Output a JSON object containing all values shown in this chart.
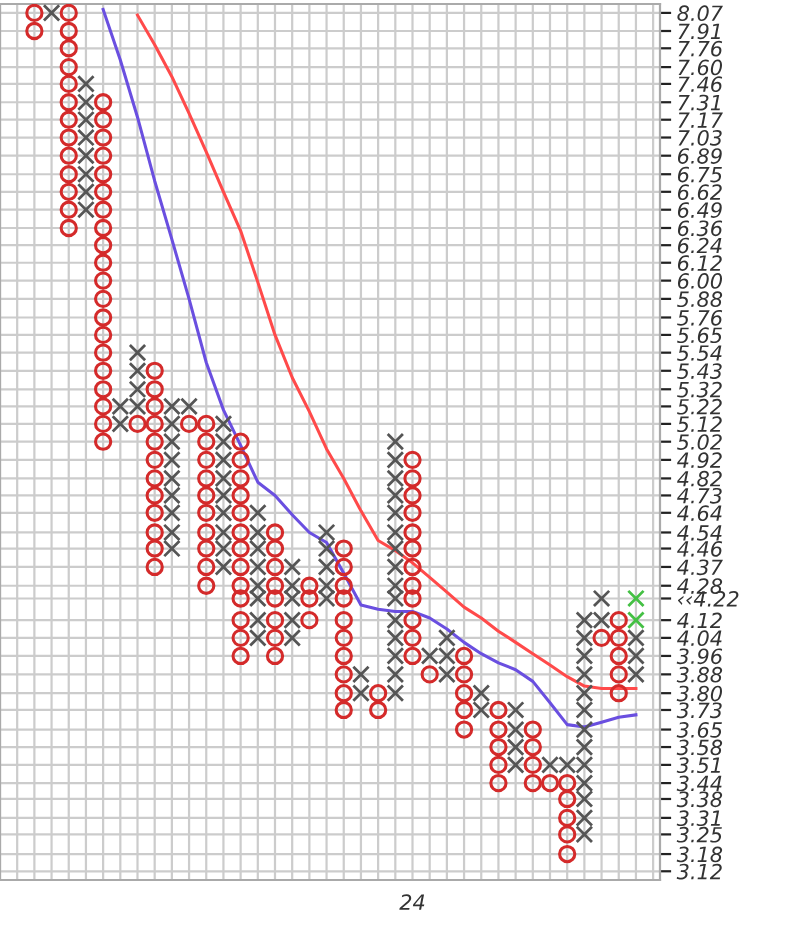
{
  "chart_data": {
    "type": "scatter",
    "categories": [
      null,
      null,
      null,
      null,
      null,
      null,
      null,
      null,
      null,
      null,
      null,
      null,
      null,
      null,
      null,
      null,
      null,
      null,
      null,
      null,
      null,
      null,
      "24",
      null,
      null,
      null,
      null,
      null,
      null,
      null,
      null,
      null,
      null,
      null,
      null,
      null,
      null
    ],
    "ylim": [
      3.09,
      8.15
    ],
    "log": true,
    "yticks": [
      {
        "value": 8.07,
        "label": "8.07"
      },
      {
        "value": 7.91,
        "label": "7.91"
      },
      {
        "value": 7.76,
        "label": "7.76"
      },
      {
        "value": 7.6,
        "label": "7.60"
      },
      {
        "value": 7.46,
        "label": "7.46"
      },
      {
        "value": 7.31,
        "label": "7.31"
      },
      {
        "value": 7.17,
        "label": "7.17"
      },
      {
        "value": 7.03,
        "label": "7.03"
      },
      {
        "value": 6.89,
        "label": "6.89"
      },
      {
        "value": 6.75,
        "label": "6.75"
      },
      {
        "value": 6.62,
        "label": "6.62"
      },
      {
        "value": 6.49,
        "label": "6.49"
      },
      {
        "value": 6.36,
        "label": "6.36"
      },
      {
        "value": 6.24,
        "label": "6.24"
      },
      {
        "value": 6.12,
        "label": "6.12"
      },
      {
        "value": 6.0,
        "label": "6.00"
      },
      {
        "value": 5.88,
        "label": "5.88"
      },
      {
        "value": 5.76,
        "label": "5.76"
      },
      {
        "value": 5.65,
        "label": "5.65"
      },
      {
        "value": 5.54,
        "label": "5.54"
      },
      {
        "value": 5.43,
        "label": "5.43"
      },
      {
        "value": 5.32,
        "label": "5.32"
      },
      {
        "value": 5.22,
        "label": "5.22"
      },
      {
        "value": 5.12,
        "label": "5.12"
      },
      {
        "value": 5.02,
        "label": "5.02"
      },
      {
        "value": 4.92,
        "label": "4.92"
      },
      {
        "value": 4.82,
        "label": "4.82"
      },
      {
        "value": 4.73,
        "label": "4.73"
      },
      {
        "value": 4.64,
        "label": "4.64"
      },
      {
        "value": 4.54,
        "label": "4.54"
      },
      {
        "value": 4.46,
        "label": "4.46"
      },
      {
        "value": 4.37,
        "label": "4.37"
      },
      {
        "value": 4.28,
        "label": "4.28"
      },
      {
        "value": 4.22,
        "label": "‹‹4.22"
      },
      {
        "value": 4.12,
        "label": "4.12"
      },
      {
        "value": 4.04,
        "label": "4.04"
      },
      {
        "value": 3.96,
        "label": "3.96"
      },
      {
        "value": 3.88,
        "label": "3.88"
      },
      {
        "value": 3.8,
        "label": "3.80"
      },
      {
        "value": 3.73,
        "label": "3.73"
      },
      {
        "value": 3.65,
        "label": "3.65"
      },
      {
        "value": 3.58,
        "label": "3.58"
      },
      {
        "value": 3.51,
        "label": "3.51"
      },
      {
        "value": 3.44,
        "label": "3.44"
      },
      {
        "value": 3.38,
        "label": "3.38"
      },
      {
        "value": 3.31,
        "label": "3.31"
      },
      {
        "value": 3.25,
        "label": "3.25"
      },
      {
        "value": 3.18,
        "label": "3.18"
      },
      {
        "value": 3.12,
        "label": "3.12"
      }
    ],
    "grid": true,
    "series": [
      {
        "type": "line",
        "color": "#ff4a4a",
        "values": [
          null,
          null,
          null,
          null,
          null,
          null,
          8.05,
          7.79,
          7.52,
          7.22,
          6.92,
          6.62,
          6.34,
          5.99,
          5.65,
          5.39,
          5.19,
          4.98,
          4.82,
          4.65,
          4.5,
          4.45,
          4.39,
          4.32,
          4.25,
          4.18,
          4.13,
          4.07,
          4.02,
          3.97,
          3.92,
          3.87,
          3.83,
          3.82,
          3.82,
          3.82,
          null
        ]
      },
      {
        "type": "line",
        "color": "#6a4fe0",
        "values": [
          null,
          null,
          null,
          null,
          8.1,
          7.66,
          7.19,
          6.7,
          6.28,
          5.88,
          5.48,
          5.2,
          5.0,
          4.8,
          4.73,
          4.63,
          4.54,
          4.49,
          4.34,
          4.19,
          4.17,
          4.16,
          4.16,
          4.13,
          4.08,
          4.02,
          3.97,
          3.93,
          3.9,
          3.85,
          3.76,
          3.67,
          3.66,
          3.68,
          3.7,
          3.71,
          null
        ]
      },
      {
        "type": "scatter",
        "marker": "cross",
        "color": "#555555",
        "values": [
          null,
          8.07,
          null,
          7.46,
          null,
          5.22,
          5.54,
          null,
          5.22,
          5.22,
          null,
          5.12,
          null,
          4.64,
          null,
          4.37,
          null,
          4.54,
          null,
          3.88,
          null,
          5.02,
          null,
          3.96,
          4.04,
          null,
          3.8,
          null,
          3.73,
          null,
          3.51,
          3.51,
          4.12,
          4.22,
          null,
          4.04,
          null
        ]
      },
      {
        "type": "scatter",
        "marker": "cross",
        "color": "#555555",
        "values": [
          null,
          null,
          null,
          7.31,
          null,
          5.12,
          5.43,
          null,
          5.12,
          null,
          null,
          5.02,
          null,
          4.54,
          null,
          4.28,
          null,
          4.46,
          null,
          3.8,
          null,
          4.92,
          null,
          null,
          3.96,
          null,
          3.73,
          null,
          3.65,
          null,
          null,
          null,
          4.04,
          4.12,
          null,
          3.96,
          null
        ]
      },
      {
        "type": "scatter",
        "marker": "cross",
        "color": "#555555",
        "values": [
          null,
          null,
          null,
          7.17,
          null,
          null,
          5.32,
          null,
          5.02,
          null,
          null,
          4.92,
          null,
          4.46,
          null,
          4.22,
          null,
          4.37,
          null,
          null,
          null,
          4.82,
          null,
          null,
          3.88,
          null,
          null,
          null,
          3.58,
          null,
          null,
          null,
          3.96,
          null,
          null,
          3.88,
          null
        ]
      },
      {
        "type": "scatter",
        "marker": "cross",
        "color": "#555555",
        "values": [
          null,
          null,
          null,
          7.03,
          null,
          null,
          5.22,
          null,
          4.92,
          null,
          null,
          4.82,
          null,
          4.37,
          null,
          4.12,
          null,
          4.28,
          null,
          null,
          null,
          4.73,
          null,
          null,
          null,
          null,
          null,
          null,
          3.51,
          null,
          null,
          null,
          3.88,
          null,
          null,
          null,
          null
        ]
      },
      {
        "type": "scatter",
        "marker": "cross",
        "color": "#555555",
        "values": [
          null,
          null,
          null,
          6.89,
          null,
          null,
          null,
          null,
          4.82,
          null,
          null,
          4.73,
          null,
          4.28,
          null,
          4.04,
          null,
          4.22,
          null,
          null,
          null,
          4.64,
          null,
          null,
          null,
          null,
          null,
          null,
          null,
          null,
          null,
          null,
          3.8,
          null,
          null,
          null,
          null
        ]
      },
      {
        "type": "scatter",
        "marker": "cross",
        "color": "#555555",
        "values": [
          null,
          null,
          null,
          6.75,
          null,
          null,
          null,
          null,
          4.73,
          null,
          null,
          4.64,
          null,
          4.22,
          null,
          null,
          null,
          null,
          null,
          null,
          null,
          4.54,
          null,
          null,
          null,
          null,
          null,
          null,
          null,
          null,
          null,
          null,
          3.73,
          null,
          null,
          null,
          null
        ]
      },
      {
        "type": "scatter",
        "marker": "cross",
        "color": "#555555",
        "values": [
          null,
          null,
          null,
          6.62,
          null,
          null,
          null,
          null,
          4.64,
          null,
          null,
          4.54,
          null,
          4.12,
          null,
          null,
          null,
          null,
          null,
          null,
          null,
          4.46,
          null,
          null,
          null,
          null,
          null,
          null,
          null,
          null,
          null,
          null,
          3.65,
          null,
          null,
          null,
          null
        ]
      },
      {
        "type": "scatter",
        "marker": "cross",
        "color": "#555555",
        "values": [
          null,
          null,
          null,
          6.49,
          null,
          null,
          null,
          null,
          4.54,
          null,
          null,
          4.46,
          null,
          4.04,
          null,
          null,
          null,
          null,
          null,
          null,
          null,
          4.37,
          null,
          null,
          null,
          null,
          null,
          null,
          null,
          null,
          null,
          null,
          3.58,
          null,
          null,
          null,
          null
        ]
      },
      {
        "type": "scatter",
        "marker": "cross",
        "color": "#555555",
        "values": [
          null,
          null,
          null,
          null,
          null,
          null,
          null,
          null,
          4.46,
          null,
          null,
          4.37,
          null,
          null,
          null,
          null,
          null,
          null,
          null,
          null,
          null,
          4.28,
          null,
          null,
          null,
          null,
          null,
          null,
          null,
          null,
          null,
          null,
          3.51,
          null,
          null,
          null,
          null
        ]
      },
      {
        "type": "scatter",
        "marker": "cross",
        "color": "#555555",
        "values": [
          null,
          null,
          null,
          null,
          null,
          null,
          null,
          null,
          null,
          null,
          null,
          null,
          null,
          null,
          null,
          null,
          null,
          null,
          null,
          null,
          null,
          4.22,
          null,
          null,
          null,
          null,
          null,
          null,
          null,
          null,
          null,
          null,
          3.44,
          null,
          null,
          null,
          null
        ]
      },
      {
        "type": "scatter",
        "marker": "cross",
        "color": "#555555",
        "values": [
          null,
          null,
          null,
          null,
          null,
          null,
          null,
          null,
          null,
          null,
          null,
          null,
          null,
          null,
          null,
          null,
          null,
          null,
          null,
          null,
          null,
          4.12,
          null,
          null,
          null,
          null,
          null,
          null,
          null,
          null,
          null,
          null,
          3.38,
          null,
          null,
          null,
          null
        ]
      },
      {
        "type": "scatter",
        "marker": "cross",
        "color": "#555555",
        "values": [
          null,
          null,
          null,
          null,
          null,
          null,
          null,
          null,
          null,
          null,
          null,
          null,
          null,
          null,
          null,
          null,
          null,
          null,
          null,
          null,
          null,
          4.04,
          null,
          null,
          null,
          null,
          null,
          null,
          null,
          null,
          null,
          null,
          3.31,
          null,
          null,
          null,
          null
        ]
      },
      {
        "type": "scatter",
        "marker": "cross",
        "color": "#555555",
        "values": [
          null,
          null,
          null,
          null,
          null,
          null,
          null,
          null,
          null,
          null,
          null,
          null,
          null,
          null,
          null,
          null,
          null,
          null,
          null,
          null,
          null,
          3.96,
          null,
          null,
          null,
          null,
          null,
          null,
          null,
          null,
          null,
          null,
          3.25,
          null,
          null,
          null,
          null
        ]
      },
      {
        "type": "scatter",
        "marker": "cross",
        "color": "#555555",
        "values": [
          null,
          null,
          null,
          null,
          null,
          null,
          null,
          null,
          null,
          null,
          null,
          null,
          null,
          null,
          null,
          null,
          null,
          null,
          null,
          null,
          null,
          3.88,
          null,
          null,
          null,
          null,
          null,
          null,
          null,
          null,
          null,
          null,
          null,
          null,
          null,
          null,
          null
        ]
      },
      {
        "type": "scatter",
        "marker": "cross",
        "color": "#555555",
        "values": [
          null,
          null,
          null,
          null,
          null,
          null,
          null,
          null,
          null,
          null,
          null,
          null,
          null,
          null,
          null,
          null,
          null,
          null,
          null,
          null,
          null,
          3.8,
          null,
          null,
          null,
          null,
          null,
          null,
          null,
          null,
          null,
          null,
          null,
          null,
          null,
          null,
          null
        ]
      },
      {
        "type": "scatter",
        "marker": "cross",
        "color": "#44c044",
        "values": [
          null,
          null,
          null,
          null,
          null,
          null,
          null,
          null,
          null,
          null,
          null,
          null,
          null,
          null,
          null,
          null,
          null,
          null,
          null,
          null,
          null,
          null,
          null,
          null,
          null,
          null,
          null,
          null,
          null,
          null,
          null,
          null,
          null,
          null,
          null,
          4.22,
          null
        ]
      },
      {
        "type": "scatter",
        "marker": "cross",
        "color": "#44c044",
        "values": [
          null,
          null,
          null,
          null,
          null,
          null,
          null,
          null,
          null,
          null,
          null,
          null,
          null,
          null,
          null,
          null,
          null,
          null,
          null,
          null,
          null,
          null,
          null,
          null,
          null,
          null,
          null,
          null,
          null,
          null,
          null,
          null,
          null,
          null,
          null,
          4.12,
          null
        ]
      },
      {
        "type": "scatter",
        "marker": "circle",
        "color": "#d42a2a",
        "values": [
          8.07,
          null,
          8.07,
          null,
          7.31,
          null,
          5.12,
          5.43,
          null,
          5.12,
          5.12,
          null,
          5.02,
          null,
          4.54,
          null,
          4.28,
          null,
          4.46,
          null,
          3.8,
          null,
          4.92,
          3.88,
          null,
          3.96,
          null,
          3.73,
          null,
          3.65,
          3.44,
          3.44,
          null,
          4.04,
          4.12,
          null,
          null
        ]
      },
      {
        "type": "scatter",
        "marker": "circle",
        "color": "#d42a2a",
        "values": [
          7.91,
          null,
          7.91,
          null,
          7.17,
          null,
          null,
          5.32,
          null,
          null,
          5.02,
          null,
          4.92,
          null,
          4.46,
          null,
          4.22,
          null,
          4.37,
          null,
          3.73,
          null,
          4.82,
          null,
          null,
          3.88,
          null,
          3.65,
          null,
          3.58,
          null,
          3.38,
          null,
          null,
          4.04,
          null,
          null
        ]
      },
      {
        "type": "scatter",
        "marker": "circle",
        "color": "#d42a2a",
        "values": [
          null,
          null,
          7.76,
          null,
          7.03,
          null,
          null,
          5.22,
          null,
          null,
          4.92,
          null,
          4.82,
          null,
          4.37,
          null,
          4.12,
          null,
          4.28,
          null,
          null,
          null,
          4.73,
          null,
          null,
          3.8,
          null,
          3.58,
          null,
          3.51,
          null,
          3.31,
          null,
          null,
          3.96,
          null,
          null
        ]
      },
      {
        "type": "scatter",
        "marker": "circle",
        "color": "#d42a2a",
        "values": [
          null,
          null,
          7.6,
          null,
          6.89,
          null,
          null,
          5.12,
          null,
          null,
          4.82,
          null,
          4.73,
          null,
          4.28,
          null,
          null,
          null,
          4.22,
          null,
          null,
          null,
          4.64,
          null,
          null,
          3.73,
          null,
          3.51,
          null,
          3.44,
          null,
          3.25,
          null,
          null,
          3.88,
          null,
          null
        ]
      },
      {
        "type": "scatter",
        "marker": "circle",
        "color": "#d42a2a",
        "values": [
          null,
          null,
          7.46,
          null,
          6.75,
          null,
          null,
          5.02,
          null,
          null,
          4.73,
          null,
          4.64,
          null,
          4.22,
          null,
          null,
          null,
          4.12,
          null,
          null,
          null,
          4.54,
          null,
          null,
          3.65,
          null,
          3.44,
          null,
          null,
          null,
          3.18,
          null,
          null,
          3.8,
          null,
          null
        ]
      },
      {
        "type": "scatter",
        "marker": "circle",
        "color": "#d42a2a",
        "values": [
          null,
          null,
          7.31,
          null,
          6.62,
          null,
          null,
          4.92,
          null,
          null,
          4.64,
          null,
          4.54,
          null,
          4.12,
          null,
          null,
          null,
          4.04,
          null,
          null,
          null,
          4.46,
          null,
          null,
          null,
          null,
          null,
          null,
          null,
          null,
          null,
          null,
          null,
          null,
          null,
          null
        ]
      },
      {
        "type": "scatter",
        "marker": "circle",
        "color": "#d42a2a",
        "values": [
          null,
          null,
          7.17,
          null,
          6.49,
          null,
          null,
          4.82,
          null,
          null,
          4.54,
          null,
          4.46,
          null,
          4.04,
          null,
          null,
          null,
          3.96,
          null,
          null,
          null,
          4.37,
          null,
          null,
          null,
          null,
          null,
          null,
          null,
          null,
          null,
          null,
          null,
          null,
          null,
          null
        ]
      },
      {
        "type": "scatter",
        "marker": "circle",
        "color": "#d42a2a",
        "values": [
          null,
          null,
          7.03,
          null,
          6.36,
          null,
          null,
          4.73,
          null,
          null,
          4.46,
          null,
          4.37,
          null,
          3.96,
          null,
          null,
          null,
          3.88,
          null,
          null,
          null,
          4.28,
          null,
          null,
          null,
          null,
          null,
          null,
          null,
          null,
          null,
          null,
          null,
          null,
          null,
          null
        ]
      },
      {
        "type": "scatter",
        "marker": "circle",
        "color": "#d42a2a",
        "values": [
          null,
          null,
          6.89,
          null,
          6.24,
          null,
          null,
          4.64,
          null,
          null,
          4.37,
          null,
          4.28,
          null,
          null,
          null,
          null,
          null,
          3.8,
          null,
          null,
          null,
          4.22,
          null,
          null,
          null,
          null,
          null,
          null,
          null,
          null,
          null,
          null,
          null,
          null,
          null,
          null
        ]
      },
      {
        "type": "scatter",
        "marker": "circle",
        "color": "#d42a2a",
        "values": [
          null,
          null,
          6.75,
          null,
          6.12,
          null,
          null,
          4.54,
          null,
          null,
          4.28,
          null,
          4.22,
          null,
          null,
          null,
          null,
          null,
          3.73,
          null,
          null,
          null,
          4.12,
          null,
          null,
          null,
          null,
          null,
          null,
          null,
          null,
          null,
          null,
          null,
          null,
          null,
          null
        ]
      },
      {
        "type": "scatter",
        "marker": "circle",
        "color": "#d42a2a",
        "values": [
          null,
          null,
          6.62,
          null,
          6.0,
          null,
          null,
          4.46,
          null,
          null,
          null,
          null,
          4.12,
          null,
          null,
          null,
          null,
          null,
          null,
          null,
          null,
          null,
          4.04,
          null,
          null,
          null,
          null,
          null,
          null,
          null,
          null,
          null,
          null,
          null,
          null,
          null,
          null
        ]
      },
      {
        "type": "scatter",
        "marker": "circle",
        "color": "#d42a2a",
        "values": [
          null,
          null,
          6.49,
          null,
          5.88,
          null,
          null,
          4.37,
          null,
          null,
          null,
          null,
          4.04,
          null,
          null,
          null,
          null,
          null,
          null,
          null,
          null,
          null,
          3.96,
          null,
          null,
          null,
          null,
          null,
          null,
          null,
          null,
          null,
          null,
          null,
          null,
          null,
          null
        ]
      },
      {
        "type": "scatter",
        "marker": "circle",
        "color": "#d42a2a",
        "values": [
          null,
          null,
          6.36,
          null,
          5.76,
          null,
          null,
          null,
          null,
          null,
          null,
          null,
          3.96,
          null,
          null,
          null,
          null,
          null,
          null,
          null,
          null,
          null,
          null,
          null,
          null,
          null,
          null,
          null,
          null,
          null,
          null,
          null,
          null,
          null,
          null,
          null,
          null
        ]
      },
      {
        "type": "scatter",
        "marker": "circle",
        "color": "#d42a2a",
        "values": [
          null,
          null,
          null,
          null,
          5.65,
          null,
          null,
          null,
          null,
          null,
          null,
          null,
          null,
          null,
          null,
          null,
          null,
          null,
          null,
          null,
          null,
          null,
          null,
          null,
          null,
          null,
          null,
          null,
          null,
          null,
          null,
          null,
          null,
          null,
          null,
          null,
          null
        ]
      },
      {
        "type": "scatter",
        "marker": "circle",
        "color": "#d42a2a",
        "values": [
          null,
          null,
          null,
          null,
          5.54,
          null,
          null,
          null,
          null,
          null,
          null,
          null,
          null,
          null,
          null,
          null,
          null,
          null,
          null,
          null,
          null,
          null,
          null,
          null,
          null,
          null,
          null,
          null,
          null,
          null,
          null,
          null,
          null,
          null,
          null,
          null,
          null
        ]
      },
      {
        "type": "scatter",
        "marker": "circle",
        "color": "#d42a2a",
        "values": [
          null,
          null,
          null,
          null,
          5.43,
          null,
          null,
          null,
          null,
          null,
          null,
          null,
          null,
          null,
          null,
          null,
          null,
          null,
          null,
          null,
          null,
          null,
          null,
          null,
          null,
          null,
          null,
          null,
          null,
          null,
          null,
          null,
          null,
          null,
          null,
          null,
          null
        ]
      },
      {
        "type": "scatter",
        "marker": "circle",
        "color": "#d42a2a",
        "values": [
          null,
          null,
          null,
          null,
          5.32,
          null,
          null,
          null,
          null,
          null,
          null,
          null,
          null,
          null,
          null,
          null,
          null,
          null,
          null,
          null,
          null,
          null,
          null,
          null,
          null,
          null,
          null,
          null,
          null,
          null,
          null,
          null,
          null,
          null,
          null,
          null,
          null
        ]
      },
      {
        "type": "scatter",
        "marker": "circle",
        "color": "#d42a2a",
        "values": [
          null,
          null,
          null,
          null,
          5.22,
          null,
          null,
          null,
          null,
          null,
          null,
          null,
          null,
          null,
          null,
          null,
          null,
          null,
          null,
          null,
          null,
          null,
          null,
          null,
          null,
          null,
          null,
          null,
          null,
          null,
          null,
          null,
          null,
          null,
          null,
          null,
          null
        ]
      },
      {
        "type": "scatter",
        "marker": "circle",
        "color": "#d42a2a",
        "values": [
          null,
          null,
          null,
          null,
          5.12,
          null,
          null,
          null,
          null,
          null,
          null,
          null,
          null,
          null,
          null,
          null,
          null,
          null,
          null,
          null,
          null,
          null,
          null,
          null,
          null,
          null,
          null,
          null,
          null,
          null,
          null,
          null,
          null,
          null,
          null,
          null,
          null
        ]
      },
      {
        "type": "scatter",
        "marker": "circle",
        "color": "#d42a2a",
        "values": [
          null,
          null,
          null,
          null,
          5.02,
          null,
          null,
          null,
          null,
          null,
          null,
          null,
          null,
          null,
          null,
          null,
          null,
          null,
          null,
          null,
          null,
          null,
          null,
          null,
          null,
          null,
          null,
          null,
          null,
          null,
          null,
          null,
          null,
          null,
          null,
          null,
          null
        ]
      }
    ]
  }
}
